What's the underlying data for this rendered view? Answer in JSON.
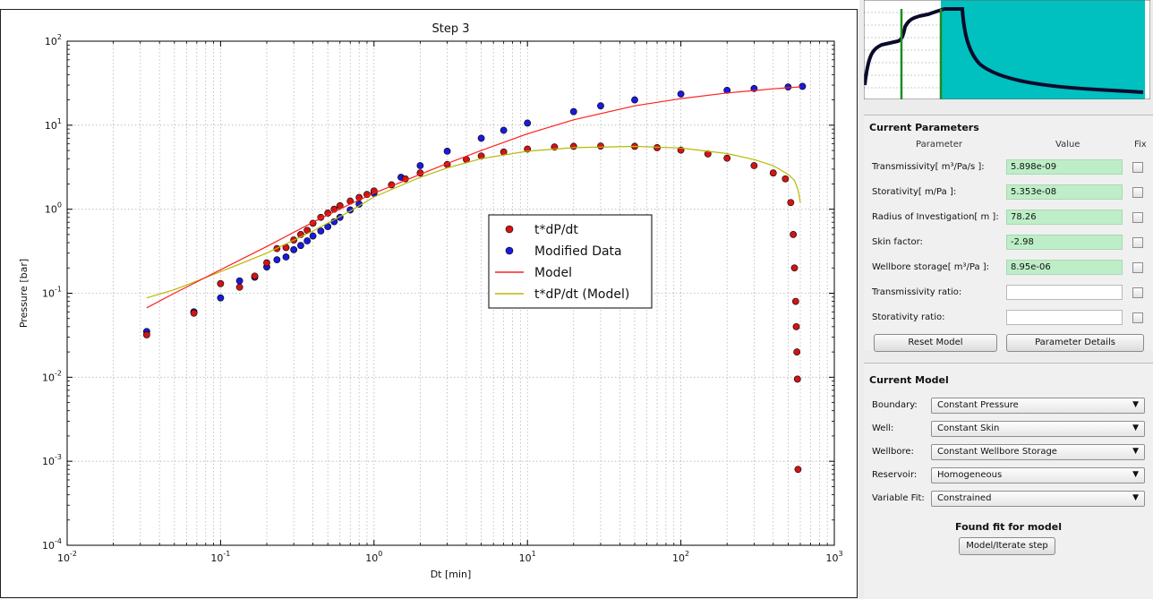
{
  "plot": {
    "title": "Step 3",
    "xlabel": "Dt [min]",
    "ylabel": "Pressure [bar]",
    "x_ticks": [
      {
        "base": "10",
        "exp": "-2",
        "value": 0.01
      },
      {
        "base": "10",
        "exp": "-1",
        "value": 0.1
      },
      {
        "base": "10",
        "exp": "0",
        "value": 1
      },
      {
        "base": "10",
        "exp": "1",
        "value": 10
      },
      {
        "base": "10",
        "exp": "2",
        "value": 100
      },
      {
        "base": "10",
        "exp": "3",
        "value": 1000
      }
    ],
    "y_ticks": [
      {
        "base": "10",
        "exp": "-4",
        "value": 0.0001
      },
      {
        "base": "10",
        "exp": "-3",
        "value": 0.001
      },
      {
        "base": "10",
        "exp": "-2",
        "value": 0.01
      },
      {
        "base": "10",
        "exp": "-1",
        "value": 0.1
      },
      {
        "base": "10",
        "exp": "0",
        "value": 1
      },
      {
        "base": "10",
        "exp": "1",
        "value": 10
      },
      {
        "base": "10",
        "exp": "2",
        "value": 100
      }
    ],
    "legend": [
      {
        "label": "t*dP/dt",
        "kind": "marker",
        "color": "#d21414"
      },
      {
        "label": "Modified Data",
        "kind": "marker",
        "color": "#1a1adc"
      },
      {
        "label": "Model",
        "kind": "line",
        "color": "#ff2020"
      },
      {
        "label": "t*dP/dt (Model)",
        "kind": "line",
        "color": "#b8b800"
      }
    ]
  },
  "chart_data": {
    "type": "scatter",
    "title": "Step 3",
    "xlabel": "Dt [min]",
    "ylabel": "Pressure [bar]",
    "xscale": "log",
    "yscale": "log",
    "xlim": [
      0.01,
      1000
    ],
    "ylim": [
      0.0001,
      100
    ],
    "grid": true,
    "legend_position": "right-center",
    "series": [
      {
        "name": "t*dP/dt",
        "kind": "markers",
        "color": "#d21414",
        "x": [
          0.033,
          0.067,
          0.1,
          0.133,
          0.167,
          0.2,
          0.233,
          0.267,
          0.3,
          0.333,
          0.367,
          0.4,
          0.45,
          0.5,
          0.55,
          0.6,
          0.7,
          0.8,
          0.9,
          1.0,
          1.3,
          1.6,
          2,
          3,
          4,
          5,
          7,
          10,
          15,
          20,
          30,
          50,
          70,
          100,
          150,
          200,
          300,
          400,
          480,
          520,
          540,
          550,
          560,
          565,
          570,
          575,
          580
        ],
        "y": [
          0.032,
          0.058,
          0.13,
          0.118,
          0.16,
          0.23,
          0.34,
          0.35,
          0.43,
          0.5,
          0.56,
          0.68,
          0.8,
          0.9,
          1.0,
          1.1,
          1.25,
          1.38,
          1.5,
          1.65,
          1.95,
          2.3,
          2.7,
          3.4,
          3.9,
          4.3,
          4.8,
          5.2,
          5.5,
          5.6,
          5.65,
          5.6,
          5.4,
          5.05,
          4.55,
          4.05,
          3.3,
          2.7,
          2.3,
          1.2,
          0.5,
          0.2,
          0.08,
          0.04,
          0.02,
          0.0095,
          0.0008
        ]
      },
      {
        "name": "Modified Data",
        "kind": "markers",
        "color": "#1a1adc",
        "x": [
          0.033,
          0.067,
          0.1,
          0.133,
          0.167,
          0.2,
          0.233,
          0.267,
          0.3,
          0.333,
          0.367,
          0.4,
          0.45,
          0.5,
          0.55,
          0.6,
          0.7,
          0.8,
          1.0,
          1.5,
          2,
          3,
          5,
          7,
          10,
          20,
          30,
          50,
          100,
          200,
          300,
          500,
          620
        ],
        "y": [
          0.035,
          0.06,
          0.088,
          0.14,
          0.155,
          0.205,
          0.25,
          0.27,
          0.33,
          0.37,
          0.42,
          0.48,
          0.55,
          0.62,
          0.71,
          0.8,
          0.98,
          1.15,
          1.55,
          2.4,
          3.3,
          4.9,
          7.0,
          8.7,
          10.6,
          14.5,
          17.0,
          20.0,
          23.5,
          26.0,
          27.3,
          28.5,
          29.0
        ]
      },
      {
        "name": "Model",
        "kind": "line",
        "color": "#ff2020",
        "x": [
          0.033,
          0.05,
          0.1,
          0.2,
          0.4,
          0.7,
          1,
          2,
          3,
          5,
          10,
          20,
          50,
          100,
          200,
          300,
          400,
          500,
          600
        ],
        "y": [
          0.067,
          0.1,
          0.19,
          0.36,
          0.7,
          1.15,
          1.55,
          2.6,
          3.5,
          5.0,
          7.9,
          11.6,
          17.0,
          20.7,
          24.2,
          25.9,
          27.1,
          27.9,
          28.6
        ]
      },
      {
        "name": "t*dP/dt (Model)",
        "kind": "line",
        "color": "#b8b800",
        "x": [
          0.033,
          0.05,
          0.1,
          0.2,
          0.4,
          0.7,
          1,
          2,
          3,
          5,
          10,
          20,
          50,
          100,
          200,
          300,
          400,
          500,
          550,
          580,
          600
        ],
        "y": [
          0.088,
          0.11,
          0.18,
          0.3,
          0.55,
          0.95,
          1.4,
          2.4,
          3.1,
          4.0,
          4.9,
          5.4,
          5.6,
          5.35,
          4.6,
          3.9,
          3.3,
          2.6,
          2.2,
          1.7,
          1.2
        ]
      }
    ]
  },
  "thumbnail": {
    "accent_fill": "#00c0c0",
    "marker_line_color": "#1e8c1e"
  },
  "params": {
    "title": "Current Parameters",
    "header_param": "Parameter",
    "header_value": "Value",
    "header_fix": "Fix",
    "rows": [
      {
        "label": "Transmissivity[ m³/Pa/s ]:",
        "value": "5.898e-09"
      },
      {
        "label": "Storativity[ m/Pa ]:",
        "value": "5.353e-08"
      },
      {
        "label": "Radius of Investigation[ m ]:",
        "value": "78.26"
      },
      {
        "label": "Skin factor:",
        "value": "-2.98"
      },
      {
        "label": "Wellbore storage[ m³/Pa ]:",
        "value": "8.95e-06"
      },
      {
        "label": "Transmissivity ratio:",
        "value": ""
      },
      {
        "label": "Storativity ratio:",
        "value": ""
      }
    ],
    "reset_label": "Reset Model",
    "details_label": "Parameter Details"
  },
  "model": {
    "title": "Current Model",
    "rows": [
      {
        "label": "Boundary:",
        "value": "Constant Pressure"
      },
      {
        "label": "Well:",
        "value": "Constant Skin"
      },
      {
        "label": "Wellbore:",
        "value": "Constant Wellbore Storage"
      },
      {
        "label": "Reservoir:",
        "value": "Homogeneous"
      },
      {
        "label": "Variable Fit:",
        "value": "Constrained"
      }
    ],
    "status": "Found fit for model",
    "iterate_label": "Model/Iterate step"
  }
}
